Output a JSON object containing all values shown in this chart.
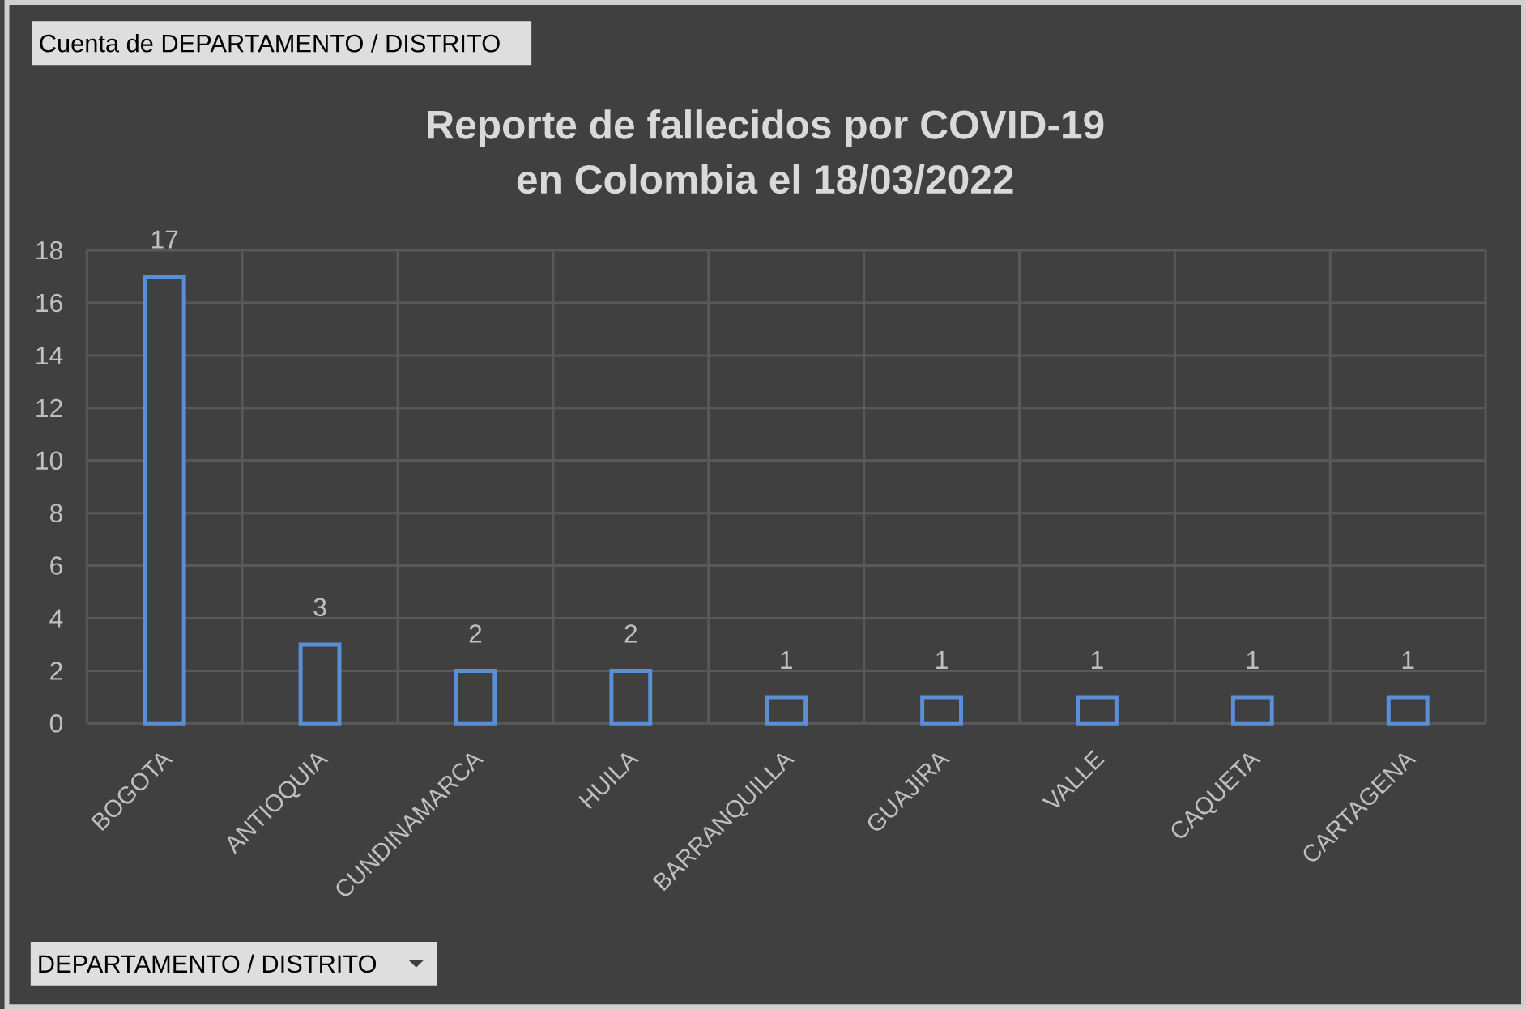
{
  "chart_data": {
    "type": "bar",
    "title": "Reporte de fallecidos por COVID-19 en Colombia el 18/03/2022",
    "annotations": [
      "Cuenta de DEPARTAMENTO / DISTRITO",
      "DEPARTAMENTO / DISTRITO"
    ],
    "categories": [
      "BOGOTA",
      "ANTIOQUIA",
      "CUNDINAMARCA",
      "HUILA",
      "BARRANQUILLA",
      "GUAJIRA",
      "VALLE",
      "CAQUETA",
      "CARTAGENA"
    ],
    "values": [
      17,
      3,
      2,
      2,
      1,
      1,
      1,
      1,
      1
    ],
    "color": "#5b8fd5",
    "ylim": [
      0,
      18
    ],
    "yticks": [
      0,
      2,
      4,
      6,
      8,
      10,
      12,
      14,
      16,
      18
    ],
    "grid": true,
    "data_labels": true
  }
}
